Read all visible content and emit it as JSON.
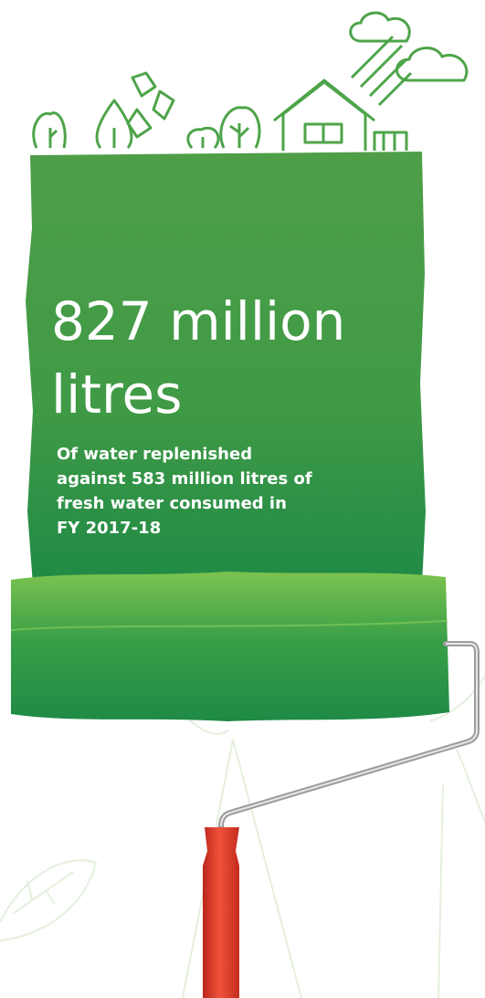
{
  "headline_lines": [
    "827 million",
    "litres"
  ],
  "description_lines": [
    "Of water replenished",
    "against 583 million litres of",
    "fresh water consumed in",
    "FY 2017-18"
  ]
}
